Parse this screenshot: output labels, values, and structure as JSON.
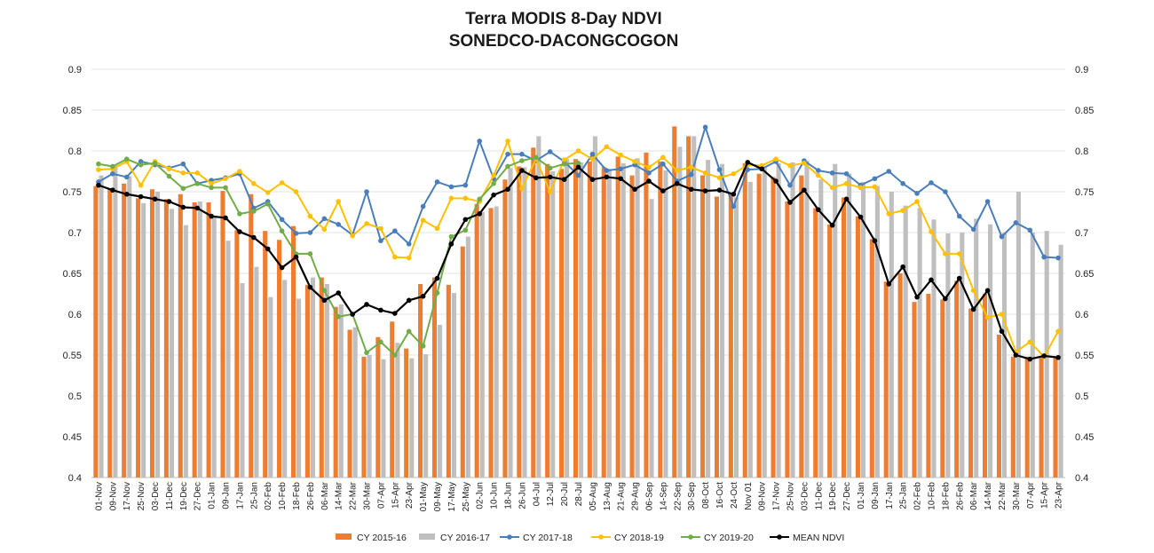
{
  "chart_data": {
    "type": "bar+line",
    "title": "Terra MODIS 8-Day  NDVI",
    "subtitle": "SONEDCO-DACONGCOGON",
    "ylim": [
      0.4,
      0.9
    ],
    "yticks": [
      "0.4",
      "0.45",
      "0.5",
      "0.55",
      "0.6",
      "0.65",
      "0.7",
      "0.75",
      "0.8",
      "0.85",
      "0.9"
    ],
    "secondary_axis": true,
    "grid": "horizontal",
    "legend_position": "bottom",
    "categories": [
      "01-Nov",
      "09-Nov",
      "17-Nov",
      "25-Nov",
      "03-Dec",
      "11-Dec",
      "19-Dec",
      "27-Dec",
      "01-Jan",
      "09-Jan",
      "17-Jan",
      "25-Jan",
      "02-Feb",
      "10-Feb",
      "18-Feb",
      "26-Feb",
      "06-Mar",
      "14-Mar",
      "22-Mar",
      "30-Mar",
      "07-Apr",
      "15-Apr",
      "23-Apr",
      "01-May",
      "09-May",
      "17-May",
      "25-May",
      "02-Jun",
      "10-Jun",
      "18-Jun",
      "26-Jun",
      "04-Jul",
      "12-Jul",
      "20-Jul",
      "28-Jul",
      "05-Aug",
      "13-Aug",
      "21-Aug",
      "29-Aug",
      "06-Sep",
      "14-Sep",
      "22-Sep",
      "30-Sep",
      "08-Oct",
      "16-Oct",
      "24-Oct",
      "Nov 01",
      "09-Nov",
      "17-Nov",
      "25-Nov",
      "03-Dec",
      "11-Dec",
      "19-Dec",
      "27-Dec",
      "01-Jan",
      "09-Jan",
      "17-Jan",
      "25-Jan",
      "02-Feb",
      "10-Feb",
      "18-Feb",
      "26-Feb",
      "06-Mar",
      "14-Mar",
      "22-Mar",
      "30-Mar",
      "07-Apr",
      "15-Apr",
      "23-Apr"
    ],
    "bar_series": [
      {
        "name": "CY 2015-16",
        "color": "#ED7D31",
        "values": [
          0.757,
          0.753,
          0.76,
          0.742,
          0.753,
          0.741,
          0.747,
          0.737,
          0.737,
          0.751,
          0.703,
          0.747,
          0.702,
          0.691,
          0.708,
          0.636,
          0.645,
          0.609,
          0.581,
          0.548,
          0.572,
          0.591,
          0.558,
          0.637,
          0.645,
          0.636,
          0.683,
          0.735,
          0.73,
          0.765,
          0.781,
          0.804,
          0.784,
          0.778,
          0.79,
          0.787,
          0.78,
          0.793,
          0.77,
          0.798,
          0.787,
          0.83,
          0.818,
          0.77,
          0.744,
          0.747,
          0.785,
          0.772,
          0.768,
          0.738,
          0.77,
          0.73,
          0.71,
          0.743,
          0.72,
          0.692,
          0.64,
          0.65,
          0.615,
          0.625,
          0.618,
          0.641,
          0.607,
          0.625,
          0.575,
          0.548,
          0.548,
          0.548,
          0.547
        ]
      },
      {
        "name": "CY 2016-17",
        "color": "#BFBFBF",
        "values": [
          0.77,
          0.782,
          0.769,
          0.736,
          0.75,
          0.729,
          0.709,
          0.738,
          0.72,
          0.69,
          0.638,
          0.658,
          0.621,
          0.642,
          0.619,
          0.645,
          0.637,
          0.612,
          0.584,
          0.55,
          0.545,
          0.565,
          0.546,
          0.551,
          0.587,
          0.626,
          0.695,
          0.725,
          0.732,
          0.779,
          0.78,
          0.818,
          0.775,
          0.79,
          0.786,
          0.818,
          0.778,
          0.785,
          0.791,
          0.741,
          0.776,
          0.805,
          0.818,
          0.789,
          0.784,
          0.743,
          0.762,
          0.78,
          0.785,
          0.786,
          0.788,
          0.765,
          0.784,
          0.772,
          0.762,
          0.757,
          0.75,
          0.733,
          0.73,
          0.716,
          0.699,
          0.7,
          0.717,
          0.71,
          0.7,
          0.75,
          0.7,
          0.702,
          0.685
        ]
      }
    ],
    "line_series": [
      {
        "name": "CY 2017-18",
        "color": "#4A7EBB",
        "values": [
          0.762,
          0.772,
          0.768,
          0.787,
          0.783,
          0.779,
          0.784,
          0.76,
          0.764,
          0.767,
          0.772,
          0.73,
          0.738,
          0.716,
          0.699,
          0.7,
          0.717,
          0.71,
          0.697,
          0.75,
          0.69,
          0.702,
          0.686,
          0.732,
          0.762,
          0.756,
          0.758,
          0.812,
          0.766,
          0.796,
          0.796,
          0.788,
          0.799,
          0.787,
          0.77,
          0.796,
          0.776,
          0.778,
          0.783,
          0.773,
          0.784,
          0.763,
          0.771,
          0.829,
          0.777,
          0.732,
          0.777,
          0.778,
          0.787,
          0.758,
          0.788,
          0.776,
          0.773,
          0.772,
          0.758,
          0.766,
          0.775,
          0.76,
          0.748,
          0.761,
          0.75,
          0.72,
          0.704,
          0.738,
          0.695,
          0.712,
          0.703,
          0.67,
          0.669
        ]
      },
      {
        "name": "CY 2018-19",
        "color": "#FFC000",
        "values": [
          0.777,
          0.778,
          0.787,
          0.758,
          0.787,
          0.778,
          0.773,
          0.773,
          0.76,
          0.766,
          0.775,
          0.76,
          0.749,
          0.761,
          0.75,
          0.72,
          0.704,
          0.738,
          0.696,
          0.711,
          0.705,
          0.67,
          0.669,
          0.715,
          0.705,
          0.742,
          0.742,
          0.738,
          0.77,
          0.812,
          0.754,
          0.79,
          0.75,
          0.789,
          0.8,
          0.79,
          0.805,
          0.795,
          0.787,
          0.78,
          0.792,
          0.776,
          0.78,
          0.773,
          0.767,
          0.772,
          0.783,
          0.782,
          0.79,
          0.782,
          0.785,
          0.77,
          0.755,
          0.76,
          0.755,
          0.756,
          0.723,
          0.727,
          0.738,
          0.701,
          0.674,
          0.674,
          0.629,
          0.596,
          0.6,
          0.554,
          0.566,
          0.548,
          0.579
        ]
      },
      {
        "name": "CY 2019-20",
        "color": "#70AD47",
        "values": [
          0.784,
          0.781,
          0.79,
          0.783,
          0.785,
          0.769,
          0.754,
          0.76,
          0.755,
          0.755,
          0.723,
          0.726,
          0.735,
          0.702,
          0.674,
          0.674,
          0.629,
          0.597,
          0.6,
          0.553,
          0.566,
          0.55,
          0.579,
          0.561,
          0.626,
          0.695,
          0.703,
          0.741,
          0.76,
          0.781,
          0.788,
          0.792,
          0.779,
          0.784,
          0.785
        ]
      },
      {
        "name": "MEAN NDVI",
        "color": "#000000",
        "values": [
          0.758,
          0.752,
          0.747,
          0.744,
          0.741,
          0.738,
          0.731,
          0.73,
          0.72,
          0.718,
          0.701,
          0.694,
          0.68,
          0.657,
          0.67,
          0.633,
          0.617,
          0.626,
          0.6,
          0.612,
          0.605,
          0.601,
          0.617,
          0.622,
          0.644,
          0.686,
          0.716,
          0.723,
          0.746,
          0.753,
          0.776,
          0.767,
          0.768,
          0.765,
          0.78,
          0.765,
          0.768,
          0.766,
          0.753,
          0.763,
          0.751,
          0.76,
          0.753,
          0.751,
          0.752,
          0.747,
          0.786,
          0.778,
          0.763,
          0.737,
          0.752,
          0.728,
          0.709,
          0.741,
          0.719,
          0.69,
          0.637,
          0.658,
          0.621,
          0.642,
          0.619,
          0.644,
          0.606,
          0.629,
          0.579,
          0.55,
          0.545,
          0.549,
          0.547
        ]
      }
    ]
  }
}
